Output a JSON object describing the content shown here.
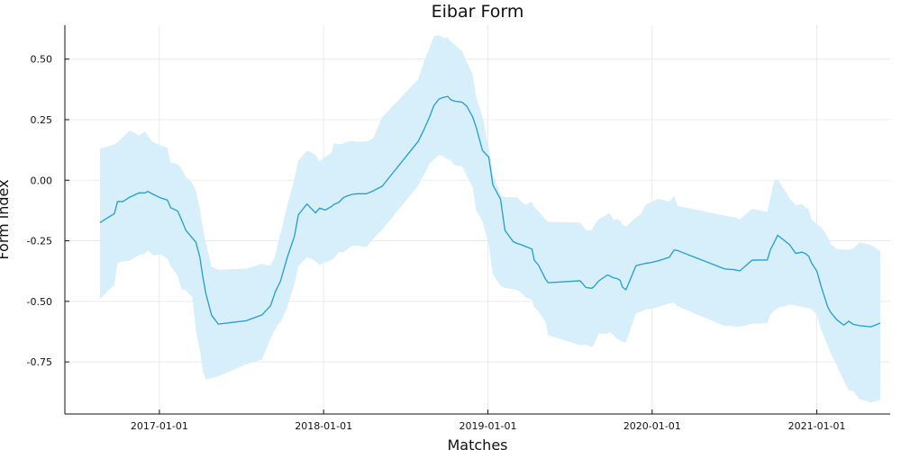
{
  "chart_data": {
    "type": "area",
    "title": "Eibar Form",
    "xlabel": "Matches",
    "ylabel": "Form index",
    "xlim": [
      "2016-06-05",
      "2021-06-13"
    ],
    "ylim": [
      -0.965,
      0.64
    ],
    "grid": true,
    "legend": "none",
    "x_ticks": [
      "2017-01-01",
      "2018-01-01",
      "2019-01-01",
      "2020-01-01",
      "2021-01-01"
    ],
    "y_ticks": [
      -0.75,
      -0.5,
      -0.25,
      0.0,
      0.25,
      0.5
    ],
    "y_tick_labels": [
      "-0.75",
      "-0.50",
      "-0.25",
      "0.00",
      "0.25",
      "0.50"
    ],
    "colors": {
      "line": "#1f9dd9",
      "band": "#d6effb"
    },
    "series": [
      {
        "x": [
          "2016-08-22",
          "2016-09-06",
          "2016-09-23",
          "2016-09-30",
          "2016-10-12",
          "2016-10-27",
          "2016-11-17",
          "2016-11-30",
          "2016-12-06",
          "2016-12-18",
          "2017-01-04",
          "2017-01-19",
          "2017-01-26",
          "2017-02-11",
          "2017-02-19",
          "2017-03-01",
          "2017-03-15",
          "2017-03-23",
          "2017-04-01",
          "2017-04-07",
          "2017-04-14",
          "2017-04-27",
          "2017-05-12",
          "2017-07-13",
          "2017-08-17",
          "2017-09-05",
          "2017-09-16",
          "2017-09-22",
          "2017-09-27",
          "2017-10-12",
          "2017-10-28",
          "2017-11-06",
          "2017-11-25",
          "2017-12-14",
          "2017-12-23",
          "2018-01-05",
          "2018-01-18",
          "2018-01-24",
          "2018-02-04",
          "2018-02-14",
          "2018-02-22",
          "2018-03-06",
          "2018-03-17",
          "2018-04-06",
          "2018-04-21",
          "2018-05-11",
          "2018-07-30",
          "2018-08-11",
          "2018-08-25",
          "2018-09-03",
          "2018-09-14",
          "2018-09-24",
          "2018-10-04",
          "2018-10-10",
          "2018-10-18",
          "2018-11-05",
          "2018-11-15",
          "2018-11-28",
          "2018-12-06",
          "2018-12-20",
          "2019-01-03",
          "2019-01-12",
          "2019-01-29",
          "2019-02-08",
          "2019-02-26",
          "2019-03-07",
          "2019-03-16",
          "2019-03-25",
          "2019-04-09",
          "2019-04-14",
          "2019-04-24",
          "2019-05-09",
          "2019-05-15",
          "2019-07-25",
          "2019-08-07",
          "2019-08-20",
          "2019-08-26",
          "2019-09-04",
          "2019-09-24",
          "2019-09-28",
          "2019-10-07",
          "2019-10-14",
          "2019-10-22",
          "2019-10-27",
          "2019-11-04",
          "2019-11-26",
          "2019-12-08",
          "2019-12-18",
          "2019-12-29",
          "2020-01-14",
          "2020-02-08",
          "2020-02-19",
          "2020-02-26",
          "2020-06-10",
          "2020-06-22",
          "2020-07-01",
          "2020-07-14",
          "2020-08-10",
          "2020-09-13",
          "2020-09-20",
          "2020-09-28",
          "2020-10-06",
          "2020-11-01",
          "2020-11-15",
          "2020-11-29",
          "2020-12-07",
          "2020-12-14",
          "2020-12-20",
          "2021-01-01",
          "2021-01-11",
          "2021-01-25",
          "2021-02-01",
          "2021-02-15",
          "2021-03-02",
          "2021-03-13",
          "2021-03-23",
          "2021-04-05",
          "2021-05-01",
          "2021-05-22"
        ],
        "y": [
          -0.175,
          -0.157,
          -0.138,
          -0.088,
          -0.088,
          -0.07,
          -0.052,
          -0.052,
          -0.046,
          -0.058,
          -0.073,
          -0.082,
          -0.113,
          -0.128,
          -0.163,
          -0.207,
          -0.238,
          -0.255,
          -0.318,
          -0.392,
          -0.466,
          -0.557,
          -0.594,
          -0.58,
          -0.556,
          -0.518,
          -0.459,
          -0.436,
          -0.417,
          -0.32,
          -0.232,
          -0.142,
          -0.098,
          -0.135,
          -0.115,
          -0.123,
          -0.109,
          -0.1,
          -0.091,
          -0.072,
          -0.065,
          -0.058,
          -0.056,
          -0.056,
          -0.044,
          -0.025,
          0.16,
          0.205,
          0.264,
          0.308,
          0.335,
          0.342,
          0.346,
          0.333,
          0.327,
          0.322,
          0.306,
          0.262,
          0.219,
          0.123,
          0.095,
          -0.019,
          -0.078,
          -0.207,
          -0.253,
          -0.261,
          -0.266,
          -0.273,
          -0.284,
          -0.33,
          -0.352,
          -0.408,
          -0.423,
          -0.415,
          -0.443,
          -0.446,
          -0.437,
          -0.416,
          -0.391,
          -0.394,
          -0.403,
          -0.405,
          -0.413,
          -0.441,
          -0.452,
          -0.353,
          -0.347,
          -0.343,
          -0.34,
          -0.333,
          -0.318,
          -0.288,
          -0.29,
          -0.366,
          -0.368,
          -0.369,
          -0.374,
          -0.33,
          -0.329,
          -0.286,
          -0.258,
          -0.227,
          -0.265,
          -0.302,
          -0.297,
          -0.303,
          -0.314,
          -0.341,
          -0.375,
          -0.441,
          -0.522,
          -0.546,
          -0.577,
          -0.598,
          -0.582,
          -0.595,
          -0.6,
          -0.605,
          -0.59
        ],
        "lower": [
          -0.49,
          -0.463,
          -0.433,
          -0.342,
          -0.335,
          -0.332,
          -0.309,
          -0.304,
          -0.288,
          -0.31,
          -0.306,
          -0.325,
          -0.354,
          -0.395,
          -0.449,
          -0.455,
          -0.482,
          -0.618,
          -0.701,
          -0.785,
          -0.823,
          -0.817,
          -0.809,
          -0.76,
          -0.74,
          -0.655,
          -0.615,
          -0.594,
          -0.586,
          -0.526,
          -0.429,
          -0.355,
          -0.316,
          -0.334,
          -0.35,
          -0.339,
          -0.33,
          -0.322,
          -0.297,
          -0.296,
          -0.287,
          -0.27,
          -0.27,
          -0.276,
          -0.243,
          -0.204,
          -0.023,
          0.02,
          0.07,
          0.085,
          0.103,
          0.1,
          0.085,
          0.085,
          0.063,
          0.057,
          0.018,
          -0.027,
          -0.123,
          -0.171,
          -0.268,
          -0.388,
          -0.436,
          -0.445,
          -0.449,
          -0.454,
          -0.464,
          -0.483,
          -0.493,
          -0.524,
          -0.543,
          -0.585,
          -0.64,
          -0.681,
          -0.678,
          -0.689,
          -0.673,
          -0.633,
          -0.635,
          -0.626,
          -0.64,
          -0.653,
          -0.661,
          -0.667,
          -0.669,
          -0.549,
          -0.542,
          -0.533,
          -0.531,
          -0.524,
          -0.508,
          -0.506,
          -0.519,
          -0.602,
          -0.601,
          -0.604,
          -0.604,
          -0.593,
          -0.59,
          -0.555,
          -0.539,
          -0.527,
          -0.514,
          -0.517,
          -0.523,
          -0.527,
          -0.527,
          -0.533,
          -0.556,
          -0.619,
          -0.683,
          -0.716,
          -0.766,
          -0.829,
          -0.869,
          -0.87,
          -0.903,
          -0.917,
          -0.907
        ],
        "upper": [
          0.13,
          0.138,
          0.148,
          0.157,
          0.178,
          0.205,
          0.185,
          0.201,
          0.184,
          0.157,
          0.143,
          0.134,
          0.073,
          0.066,
          0.047,
          0.014,
          -0.011,
          -0.044,
          -0.117,
          -0.19,
          -0.255,
          -0.357,
          -0.369,
          -0.365,
          -0.345,
          -0.353,
          -0.309,
          -0.254,
          -0.222,
          -0.106,
          0.005,
          0.082,
          0.122,
          0.105,
          0.078,
          0.096,
          0.113,
          0.153,
          0.148,
          0.151,
          0.16,
          0.162,
          0.159,
          0.16,
          0.173,
          0.26,
          0.416,
          0.482,
          0.551,
          0.594,
          0.599,
          0.588,
          0.588,
          0.574,
          0.562,
          0.532,
          0.488,
          0.437,
          0.343,
          0.262,
          0.133,
          0.026,
          -0.059,
          -0.069,
          -0.07,
          -0.07,
          -0.088,
          -0.101,
          -0.09,
          -0.11,
          -0.128,
          -0.161,
          -0.172,
          -0.175,
          -0.207,
          -0.205,
          -0.184,
          -0.161,
          -0.141,
          -0.134,
          -0.164,
          -0.16,
          -0.167,
          -0.184,
          -0.191,
          -0.153,
          -0.138,
          -0.1,
          -0.092,
          -0.077,
          -0.088,
          -0.065,
          -0.106,
          -0.146,
          -0.15,
          -0.152,
          -0.162,
          -0.118,
          -0.131,
          -0.069,
          -0.003,
          0.004,
          -0.074,
          -0.104,
          -0.098,
          -0.114,
          -0.119,
          -0.162,
          -0.181,
          -0.193,
          -0.234,
          -0.264,
          -0.284,
          -0.286,
          -0.287,
          -0.282,
          -0.257,
          -0.267,
          -0.292
        ]
      }
    ]
  }
}
